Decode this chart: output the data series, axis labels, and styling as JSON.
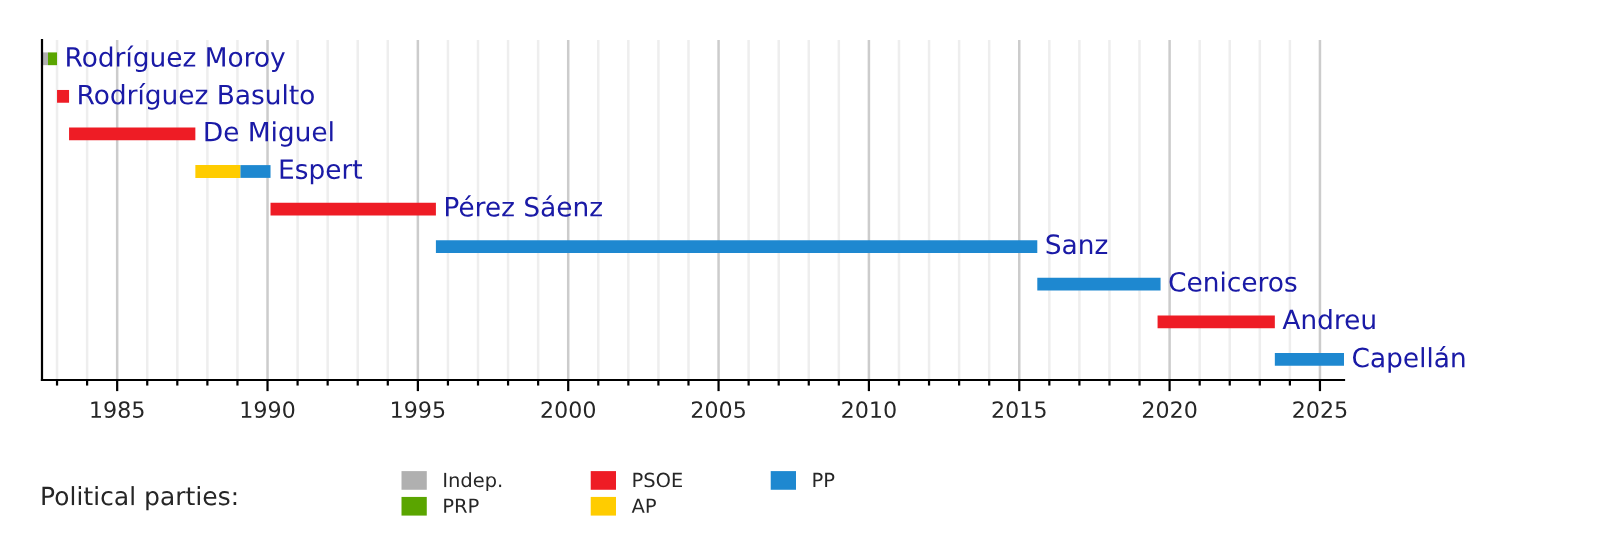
{
  "chart_data": {
    "type": "bar",
    "orientation": "horizontal",
    "categories": [
      "Rodríguez Moroy",
      "Rodríguez Basulto",
      "De Miguel",
      "Espert",
      "Pérez Sáenz",
      "Sanz",
      "Ceniceros",
      "Andreu",
      "Capellán"
    ],
    "series": [
      {
        "name": "Indep.",
        "color": "#b0b0b0",
        "base": [
          1982.5,
          null,
          null,
          null,
          null,
          null,
          null,
          null,
          null
        ],
        "values": [
          0.2,
          null,
          null,
          null,
          null,
          null,
          null,
          null,
          null
        ]
      },
      {
        "name": "PRP",
        "color": "#5aa500",
        "base": [
          1982.7,
          null,
          null,
          null,
          null,
          null,
          null,
          null,
          null
        ],
        "values": [
          0.3,
          null,
          null,
          null,
          null,
          null,
          null,
          null,
          null
        ]
      },
      {
        "name": "PSOE",
        "color": "#ee1c25",
        "base": [
          null,
          1983.0,
          1983.4,
          null,
          1990.1,
          null,
          null,
          2019.6,
          null
        ],
        "values": [
          null,
          0.4,
          4.2,
          null,
          5.5,
          null,
          null,
          3.9,
          null
        ]
      },
      {
        "name": "AP",
        "color": "#ffcc00",
        "base": [
          null,
          null,
          null,
          1987.6,
          null,
          null,
          null,
          null,
          null
        ],
        "values": [
          null,
          null,
          null,
          1.5,
          null,
          null,
          null,
          null,
          null
        ]
      },
      {
        "name": "PP",
        "color": "#1e88d0",
        "base": [
          null,
          null,
          null,
          1989.1,
          null,
          1995.6,
          2015.6,
          null,
          2023.5
        ],
        "values": [
          null,
          null,
          null,
          1.0,
          null,
          20.0,
          4.1,
          null,
          2.3
        ]
      }
    ],
    "legend_title": "Political parties:",
    "legend": "bottom",
    "xlim": [
      1982.5,
      2025.8
    ],
    "xticks": [
      {
        "value": 1983,
        "label": null
      },
      {
        "value": 1984,
        "label": null
      },
      1985,
      {
        "value": 1986,
        "label": null
      },
      {
        "value": 1987,
        "label": null
      },
      {
        "value": 1988,
        "label": null
      },
      {
        "value": 1989,
        "label": null
      },
      1990,
      {
        "value": 1991,
        "label": null
      },
      {
        "value": 1992,
        "label": null
      },
      {
        "value": 1993,
        "label": null
      },
      {
        "value": 1994,
        "label": null
      },
      1995,
      {
        "value": 1996,
        "label": null
      },
      {
        "value": 1997,
        "label": null
      },
      {
        "value": 1998,
        "label": null
      },
      {
        "value": 1999,
        "label": null
      },
      2000,
      {
        "value": 2001,
        "label": null
      },
      {
        "value": 2002,
        "label": null
      },
      {
        "value": 2003,
        "label": null
      },
      {
        "value": 2004,
        "label": null
      },
      2005,
      {
        "value": 2006,
        "label": null
      },
      {
        "value": 2007,
        "label": null
      },
      {
        "value": 2008,
        "label": null
      },
      {
        "value": 2009,
        "label": null
      },
      2010,
      {
        "value": 2011,
        "label": null
      },
      {
        "value": 2012,
        "label": null
      },
      {
        "value": 2013,
        "label": null
      },
      {
        "value": 2014,
        "label": null
      },
      2015,
      {
        "value": 2016,
        "label": null
      },
      {
        "value": 2017,
        "label": null
      },
      {
        "value": 2018,
        "label": null
      },
      {
        "value": 2019,
        "label": null
      },
      2020,
      {
        "value": 2021,
        "label": null
      },
      {
        "value": 2022,
        "label": null
      },
      {
        "value": 2023,
        "label": null
      },
      {
        "value": 2024,
        "label": null
      },
      2025
    ],
    "grid": "x"
  }
}
